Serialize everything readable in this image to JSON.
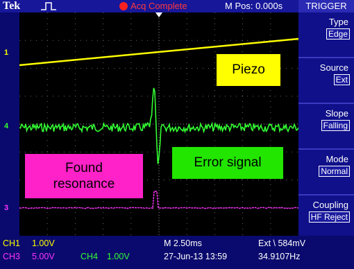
{
  "header": {
    "brand": "Tek",
    "run_icon": "pulse-icon",
    "status": "Acq Complete",
    "position": "M Pos: 0.000s",
    "menu_title": "TRIGGER"
  },
  "colors": {
    "ch1": "#ffff00",
    "ch3": "#ff33ff",
    "ch4": "#33ff33",
    "trigger": "#ff2020"
  },
  "channels": {
    "ch1_marker": "1",
    "ch3_marker": "3",
    "ch4_marker": "4"
  },
  "annotations": {
    "piezo": "Piezo",
    "error": "Error signal",
    "resonance_line1": "Found",
    "resonance_line2": "resonance"
  },
  "trigger_menu": [
    {
      "label": "Type",
      "value": "Edge"
    },
    {
      "label": "Source",
      "value": "Ext"
    },
    {
      "label": "Slope",
      "value": "Falling"
    },
    {
      "label": "Mode",
      "value": "Normal"
    },
    {
      "label": "Coupling",
      "value": "HF Reject"
    }
  ],
  "readouts": {
    "ch1_name": "CH1",
    "ch1_scale": "1.00V",
    "ch3_name": "CH3",
    "ch3_scale": "5.00V",
    "ch4_name": "CH4",
    "ch4_scale": "1.00V",
    "timebase": "M 2.50ms",
    "date_time": "27-Jun-13 13:59",
    "trigger_info": "Ext \\ 584mV",
    "frequency": "34.9107Hz"
  }
}
